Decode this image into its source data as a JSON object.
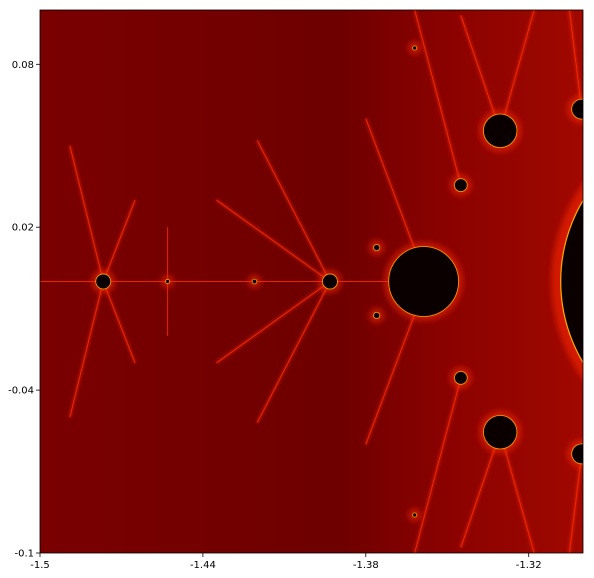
{
  "chart_data": {
    "type": "heatmap",
    "title": "",
    "xlabel": "",
    "ylabel": "",
    "xlim": [
      -1.5,
      -1.3
    ],
    "ylim": [
      -0.1,
      0.1
    ],
    "x_ticks": [
      -1.5,
      -1.44,
      -1.38,
      -1.32
    ],
    "x_tick_labels": [
      "-1.5",
      "-1.44",
      "-1.38",
      "-1.32"
    ],
    "y_ticks": [
      -0.1,
      -0.04,
      0.02,
      0.08
    ],
    "y_tick_labels": [
      "-0.1",
      "-0.04",
      "0.02",
      "0.08"
    ],
    "grid": false,
    "colormap": "hot",
    "colors": {
      "background": "#6e0000",
      "inside": "#0a0000",
      "filament": "#ff2a00",
      "highlight": "#ffd000"
    },
    "main_cardioid": {
      "x": -1.25,
      "y": 0.0,
      "r": 0.058
    },
    "bulbs": [
      {
        "x": -1.3587,
        "y": 0.0,
        "r": 0.0127
      },
      {
        "x": -1.3305,
        "y": 0.0555,
        "r": 0.006
      },
      {
        "x": -1.3305,
        "y": -0.0555,
        "r": 0.006
      },
      {
        "x": -1.3005,
        "y": 0.0635,
        "r": 0.0035
      },
      {
        "x": -1.3005,
        "y": -0.0635,
        "r": 0.0035
      },
      {
        "x": -1.345,
        "y": 0.0355,
        "r": 0.0022
      },
      {
        "x": -1.345,
        "y": -0.0355,
        "r": 0.0022
      },
      {
        "x": -1.376,
        "y": 0.0125,
        "r": 0.001
      },
      {
        "x": -1.376,
        "y": -0.0125,
        "r": 0.001
      },
      {
        "x": -1.3932,
        "y": 0.0,
        "r": 0.0026
      },
      {
        "x": -1.4767,
        "y": 0.0,
        "r": 0.0026
      },
      {
        "x": -1.421,
        "y": 0.0,
        "r": 0.0007
      },
      {
        "x": -1.453,
        "y": 0.0,
        "r": 0.0006
      },
      {
        "x": -1.362,
        "y": 0.086,
        "r": 0.0006
      },
      {
        "x": -1.362,
        "y": -0.086,
        "r": 0.0006
      }
    ],
    "filaments": [
      {
        "x1": -1.5,
        "y1": 0.0,
        "x2": -1.3587,
        "y2": 0.0
      },
      {
        "x1": -1.4767,
        "y1": 0.0,
        "x2": -1.489,
        "y2": 0.05
      },
      {
        "x1": -1.4767,
        "y1": 0.0,
        "x2": -1.489,
        "y2": -0.05
      },
      {
        "x1": -1.4767,
        "y1": 0.0,
        "x2": -1.465,
        "y2": 0.03
      },
      {
        "x1": -1.4767,
        "y1": 0.0,
        "x2": -1.465,
        "y2": -0.03
      },
      {
        "x1": -1.453,
        "y1": 0.0,
        "x2": -1.453,
        "y2": 0.02
      },
      {
        "x1": -1.453,
        "y1": 0.0,
        "x2": -1.453,
        "y2": -0.02
      },
      {
        "x1": -1.3932,
        "y1": 0.0,
        "x2": -1.42,
        "y2": 0.052
      },
      {
        "x1": -1.3932,
        "y1": 0.0,
        "x2": -1.42,
        "y2": -0.052
      },
      {
        "x1": -1.3932,
        "y1": 0.0,
        "x2": -1.435,
        "y2": 0.03
      },
      {
        "x1": -1.3932,
        "y1": 0.0,
        "x2": -1.435,
        "y2": -0.03
      },
      {
        "x1": -1.362,
        "y1": 0.012,
        "x2": -1.38,
        "y2": 0.06
      },
      {
        "x1": -1.362,
        "y1": -0.012,
        "x2": -1.38,
        "y2": -0.06
      },
      {
        "x1": -1.345,
        "y1": 0.0355,
        "x2": -1.362,
        "y2": 0.1
      },
      {
        "x1": -1.345,
        "y1": -0.0355,
        "x2": -1.362,
        "y2": -0.1
      },
      {
        "x1": -1.3305,
        "y1": 0.0555,
        "x2": -1.345,
        "y2": 0.098
      },
      {
        "x1": -1.3305,
        "y1": -0.0555,
        "x2": -1.345,
        "y2": -0.098
      },
      {
        "x1": -1.3305,
        "y1": 0.0555,
        "x2": -1.318,
        "y2": 0.1
      },
      {
        "x1": -1.3305,
        "y1": -0.0555,
        "x2": -1.318,
        "y2": -0.1
      },
      {
        "x1": -1.3005,
        "y1": 0.0635,
        "x2": -1.305,
        "y2": 0.1
      },
      {
        "x1": -1.3005,
        "y1": -0.0635,
        "x2": -1.305,
        "y2": -0.1
      }
    ]
  }
}
